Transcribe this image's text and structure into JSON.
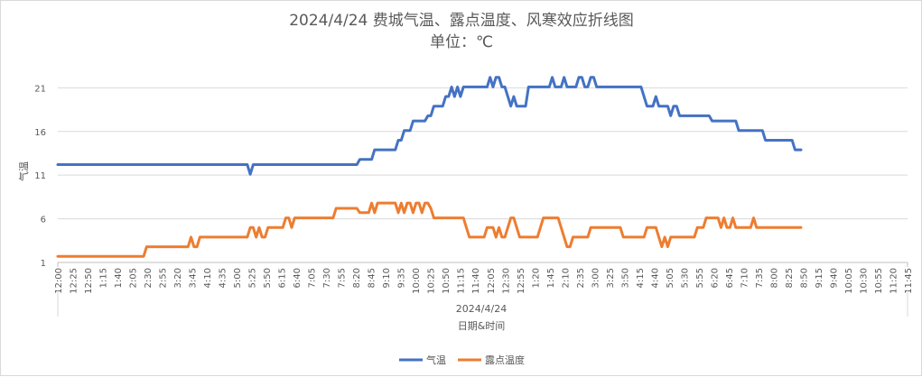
{
  "chart_data": {
    "type": "line",
    "title": "2024/4/24 费城气温、露点温度、风寒效应折线图",
    "subtitle": "单位：℃",
    "xlabel": "日期&时间",
    "ylabel": "气温",
    "date_label": "2024/4/24",
    "ylim": [
      1,
      23
    ],
    "yticks": [
      "1",
      "6",
      "11",
      "16",
      "21"
    ],
    "grid": true,
    "legend_position": "bottom",
    "x": [
      "12:00",
      "12:05",
      "12:10",
      "12:15",
      "12:20",
      "12:25",
      "12:30",
      "12:35",
      "12:40",
      "12:45",
      "12:50",
      "12:55",
      "1:00",
      "1:05",
      "1:10",
      "1:15",
      "1:20",
      "1:25",
      "1:30",
      "1:35",
      "1:40",
      "1:45",
      "1:50",
      "1:55",
      "2:00",
      "2:05",
      "2:10",
      "2:15",
      "2:20",
      "2:25",
      "2:30",
      "2:35",
      "2:40",
      "2:45",
      "2:50",
      "2:55",
      "3:00",
      "3:05",
      "3:10",
      "3:15",
      "3:20",
      "3:25",
      "3:30",
      "3:35",
      "3:40",
      "3:45",
      "3:50",
      "3:55",
      "4:00",
      "4:05",
      "4:10",
      "4:15",
      "4:20",
      "4:25",
      "4:30",
      "4:35",
      "4:40",
      "4:45",
      "4:50",
      "4:55",
      "5:00",
      "5:05",
      "5:10",
      "5:15",
      "5:20",
      "5:25",
      "5:30",
      "5:35",
      "5:40",
      "5:45",
      "5:50",
      "5:55",
      "6:00",
      "6:05",
      "6:10",
      "6:15",
      "6:20",
      "6:25",
      "6:30",
      "6:35",
      "6:40",
      "6:45",
      "6:50",
      "6:55",
      "7:00",
      "7:05",
      "7:10",
      "7:15",
      "7:20",
      "7:25",
      "7:30",
      "7:35",
      "7:40",
      "7:45",
      "7:50",
      "7:55",
      "8:00",
      "8:05",
      "8:10",
      "8:15",
      "8:20",
      "8:25",
      "8:30",
      "8:35",
      "8:40",
      "8:45",
      "8:50",
      "8:55",
      "9:00",
      "9:05",
      "9:10",
      "9:15",
      "9:20",
      "9:25",
      "9:30",
      "9:35",
      "9:40",
      "9:45",
      "9:50",
      "9:55",
      "10:00",
      "10:05",
      "10:10",
      "10:15",
      "10:20",
      "10:25",
      "10:30",
      "10:35",
      "10:40",
      "10:45",
      "10:50",
      "10:55",
      "11:00",
      "11:05",
      "11:10",
      "11:15",
      "11:20",
      "11:25",
      "11:30",
      "11:35",
      "11:40",
      "11:45",
      "11:50",
      "11:55",
      "12:00",
      "12:05",
      "12:10",
      "12:15",
      "12:20",
      "12:25",
      "12:30",
      "12:35",
      "12:40",
      "12:45",
      "12:50",
      "12:55",
      "1:00",
      "1:05",
      "1:10",
      "1:15",
      "1:20",
      "1:25",
      "1:30",
      "1:35",
      "1:40",
      "1:45",
      "1:50",
      "1:55",
      "2:00",
      "2:05",
      "2:10",
      "2:15",
      "2:20",
      "2:25",
      "2:30",
      "2:35",
      "2:40",
      "2:45",
      "2:50",
      "2:55",
      "3:00",
      "3:05",
      "3:10",
      "3:15",
      "3:20",
      "3:25",
      "3:30",
      "3:35",
      "3:40",
      "3:45",
      "3:50",
      "3:55",
      "4:00",
      "4:05",
      "4:10",
      "4:15",
      "4:20",
      "4:25",
      "4:30",
      "4:35",
      "4:40",
      "4:45",
      "4:50",
      "4:55",
      "5:00",
      "5:05",
      "5:10",
      "5:15",
      "5:20",
      "5:25",
      "5:30",
      "5:35",
      "5:40",
      "5:45",
      "5:50",
      "5:55",
      "6:00",
      "6:05",
      "6:10",
      "6:15",
      "6:20",
      "6:25",
      "6:30",
      "6:35",
      "6:40",
      "6:45",
      "6:50",
      "6:55",
      "7:00",
      "7:05",
      "7:10",
      "7:15",
      "7:20",
      "7:25",
      "7:30",
      "7:35",
      "7:40",
      "7:45",
      "7:50",
      "7:55",
      "8:00",
      "8:05",
      "8:10",
      "8:15",
      "8:20",
      "8:25",
      "8:30",
      "8:35",
      "8:40",
      "8:45",
      "8:50",
      "8:55",
      "9:00",
      "9:05",
      "9:10",
      "9:15",
      "9:20",
      "9:25",
      "9:30",
      "9:35",
      "9:40",
      "9:45",
      "9:50",
      "9:55",
      "10:00",
      "10:05",
      "10:10",
      "10:15",
      "10:20",
      "10:25",
      "10:30",
      "10:35",
      "10:40",
      "10:45",
      "10:50",
      "10:55",
      "11:00",
      "11:05",
      "11:10",
      "11:15",
      "11:20",
      "11:25",
      "11:30",
      "11:35",
      "11:40",
      "11:45",
      "11:50",
      "11:55"
    ],
    "xticks": [
      "12:00",
      "12:25",
      "12:50",
      "1:15",
      "1:40",
      "2:05",
      "2:30",
      "2:55",
      "3:20",
      "3:45",
      "4:10",
      "4:35",
      "5:00",
      "5:25",
      "5:50",
      "6:15",
      "6:40",
      "7:05",
      "7:30",
      "7:55",
      "8:20",
      "8:45",
      "9:10",
      "9:35",
      "10:00",
      "10:25",
      "10:50",
      "11:15",
      "11:40",
      "12:05",
      "12:30",
      "12:55",
      "1:20",
      "1:45",
      "2:10",
      "2:35",
      "3:00",
      "3:25",
      "3:50",
      "4:15",
      "4:40",
      "5:05",
      "5:30",
      "5:55",
      "6:20",
      "6:45",
      "7:10",
      "7:35",
      "8:00",
      "8:25",
      "8:50",
      "9:15",
      "9:40",
      "10:05",
      "10:30",
      "10:55",
      "11:20",
      "11:45"
    ],
    "series": [
      {
        "name": "气温",
        "color": "#4472C4",
        "keypoints": [
          [
            0,
            12.2
          ],
          [
            64,
            12.2
          ],
          [
            65,
            11.1
          ],
          [
            66,
            12.2
          ],
          [
            101,
            12.2
          ],
          [
            102,
            12.8
          ],
          [
            106,
            12.8
          ],
          [
            107,
            13.9
          ],
          [
            114,
            13.9
          ],
          [
            115,
            15
          ],
          [
            116,
            15
          ],
          [
            117,
            16.1
          ],
          [
            119,
            16.1
          ],
          [
            120,
            17.2
          ],
          [
            124,
            17.2
          ],
          [
            125,
            17.8
          ],
          [
            126,
            17.8
          ],
          [
            127,
            18.9
          ],
          [
            130,
            18.9
          ],
          [
            131,
            20
          ],
          [
            132,
            20
          ],
          [
            133,
            21.1
          ],
          [
            134,
            20
          ],
          [
            135,
            21.1
          ],
          [
            136,
            20
          ],
          [
            137,
            21.1
          ],
          [
            145,
            21.1
          ],
          [
            146,
            22.2
          ],
          [
            147,
            21.1
          ],
          [
            148,
            22.2
          ],
          [
            149,
            22.2
          ],
          [
            150,
            21.1
          ],
          [
            151,
            21.1
          ],
          [
            152,
            20
          ],
          [
            153,
            18.9
          ],
          [
            154,
            20
          ],
          [
            155,
            18.9
          ],
          [
            158,
            18.9
          ],
          [
            159,
            21.1
          ],
          [
            166,
            21.1
          ],
          [
            167,
            22.2
          ],
          [
            168,
            21.1
          ],
          [
            170,
            21.1
          ],
          [
            171,
            22.2
          ],
          [
            172,
            21.1
          ],
          [
            175,
            21.1
          ],
          [
            176,
            22.2
          ],
          [
            177,
            22.2
          ],
          [
            178,
            21.1
          ],
          [
            179,
            21.1
          ],
          [
            180,
            22.2
          ],
          [
            181,
            22.2
          ],
          [
            182,
            21.1
          ],
          [
            197,
            21.1
          ],
          [
            198,
            20
          ],
          [
            199,
            18.9
          ],
          [
            201,
            18.9
          ],
          [
            202,
            20
          ],
          [
            203,
            18.9
          ],
          [
            206,
            18.9
          ],
          [
            207,
            17.8
          ],
          [
            208,
            18.9
          ],
          [
            209,
            18.9
          ],
          [
            210,
            17.8
          ],
          [
            220,
            17.8
          ],
          [
            221,
            17.2
          ],
          [
            229,
            17.2
          ],
          [
            230,
            16.1
          ],
          [
            238,
            16.1
          ],
          [
            239,
            15
          ],
          [
            248,
            15
          ],
          [
            249,
            13.9
          ],
          [
            251,
            13.9
          ]
        ]
      },
      {
        "name": "露点温度",
        "color": "#ED7D31",
        "keypoints": [
          [
            0,
            1.7
          ],
          [
            29,
            1.7
          ],
          [
            30,
            2.8
          ],
          [
            44,
            2.8
          ],
          [
            45,
            3.9
          ],
          [
            46,
            2.8
          ],
          [
            47,
            2.8
          ],
          [
            48,
            3.9
          ],
          [
            64,
            3.9
          ],
          [
            65,
            5
          ],
          [
            66,
            5
          ],
          [
            67,
            3.9
          ],
          [
            68,
            5
          ],
          [
            69,
            3.9
          ],
          [
            70,
            3.9
          ],
          [
            71,
            5
          ],
          [
            76,
            5
          ],
          [
            77,
            6.1
          ],
          [
            78,
            6.1
          ],
          [
            79,
            5
          ],
          [
            80,
            6.1
          ],
          [
            93,
            6.1
          ],
          [
            94,
            7.2
          ],
          [
            101,
            7.2
          ],
          [
            102,
            6.7
          ],
          [
            105,
            6.7
          ],
          [
            106,
            7.8
          ],
          [
            107,
            6.7
          ],
          [
            108,
            7.8
          ],
          [
            114,
            7.8
          ],
          [
            115,
            6.7
          ],
          [
            116,
            7.8
          ],
          [
            117,
            6.7
          ],
          [
            118,
            7.8
          ],
          [
            119,
            7.8
          ],
          [
            120,
            6.7
          ],
          [
            121,
            7.8
          ],
          [
            122,
            7.8
          ],
          [
            123,
            6.7
          ],
          [
            124,
            7.8
          ],
          [
            125,
            7.8
          ],
          [
            126,
            7.2
          ],
          [
            127,
            6.1
          ],
          [
            137,
            6.1
          ],
          [
            138,
            5
          ],
          [
            139,
            3.9
          ],
          [
            144,
            3.9
          ],
          [
            145,
            5
          ],
          [
            147,
            5
          ],
          [
            148,
            3.9
          ],
          [
            149,
            5
          ],
          [
            150,
            3.9
          ],
          [
            151,
            3.9
          ],
          [
            152,
            5
          ],
          [
            153,
            6.1
          ],
          [
            154,
            6.1
          ],
          [
            155,
            5
          ],
          [
            156,
            3.9
          ],
          [
            162,
            3.9
          ],
          [
            163,
            5
          ],
          [
            164,
            6.1
          ],
          [
            169,
            6.1
          ],
          [
            170,
            5
          ],
          [
            171,
            3.9
          ],
          [
            172,
            2.8
          ],
          [
            173,
            2.8
          ],
          [
            174,
            3.9
          ],
          [
            179,
            3.9
          ],
          [
            180,
            5
          ],
          [
            190,
            5
          ],
          [
            191,
            3.9
          ],
          [
            198,
            3.9
          ],
          [
            199,
            5
          ],
          [
            202,
            5
          ],
          [
            203,
            3.9
          ],
          [
            204,
            2.8
          ],
          [
            205,
            3.9
          ],
          [
            206,
            2.8
          ],
          [
            207,
            3.9
          ],
          [
            215,
            3.9
          ],
          [
            216,
            5
          ],
          [
            218,
            5
          ],
          [
            219,
            6.1
          ],
          [
            223,
            6.1
          ],
          [
            224,
            5
          ],
          [
            225,
            6.1
          ],
          [
            226,
            5
          ],
          [
            227,
            5
          ],
          [
            228,
            6.1
          ],
          [
            229,
            5
          ],
          [
            234,
            5
          ],
          [
            235,
            6.1
          ],
          [
            236,
            5
          ],
          [
            251,
            5
          ]
        ]
      }
    ]
  },
  "legend": {
    "items": [
      {
        "label": "气温",
        "color": "#4472C4"
      },
      {
        "label": "露点温度",
        "color": "#ED7D31"
      }
    ]
  }
}
